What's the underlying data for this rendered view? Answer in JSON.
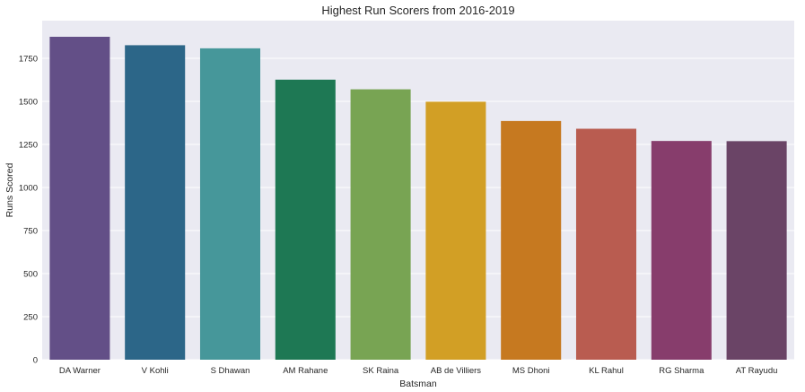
{
  "chart_data": {
    "type": "bar",
    "title": "Highest Run Scorers from 2016-2019",
    "xlabel": "Batsman",
    "ylabel": "Runs Scored",
    "categories": [
      "DA Warner",
      "V Kohli",
      "S Dhawan",
      "AM Rahane",
      "SK Raina",
      "AB de Villiers",
      "MS Dhoni",
      "KL Rahul",
      "RG Sharma",
      "AT Rayudu"
    ],
    "values": [
      1875,
      1826,
      1808,
      1626,
      1570,
      1498,
      1386,
      1341,
      1270,
      1269
    ],
    "colors": [
      "#634f87",
      "#2c6688",
      "#46979a",
      "#1e7854",
      "#78a453",
      "#d29f25",
      "#c67920",
      "#b95c50",
      "#873d6c",
      "#6a4466"
    ],
    "yticks": [
      0,
      250,
      500,
      750,
      1000,
      1250,
      1500,
      1750
    ],
    "ylim": [
      0,
      1968.75
    ],
    "grid": true,
    "background_color": "#eaeaf2",
    "grid_color": "#ffffff",
    "legend": "none"
  }
}
